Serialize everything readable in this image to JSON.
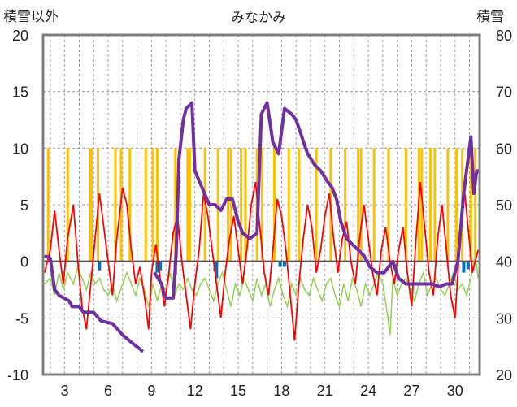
{
  "chart_data": {
    "type": "line",
    "title": "みなかみ",
    "ylabel_left": "積雪以外",
    "ylabel_right": "積雪",
    "ylim_left": [
      -10,
      20
    ],
    "ylim_right": [
      20,
      80
    ],
    "y_ticks_left": [
      -10,
      -5,
      0,
      5,
      10,
      15,
      20
    ],
    "y_ticks_right": [
      20,
      30,
      40,
      50,
      60,
      70,
      80
    ],
    "xlim": [
      1.5,
      31.7
    ],
    "x_ticks": [
      3,
      6,
      9,
      12,
      15,
      18,
      21,
      24,
      27,
      30
    ],
    "grid": true,
    "colors": {
      "temperature": "#ff0000",
      "sunshine": "#ffc000",
      "precip": "#0070c0",
      "snow_depth": "#7030a0",
      "change": "#92d050",
      "frame": "#808080"
    },
    "series": {
      "temperature": [
        [
          1.6,
          -1
        ],
        [
          2,
          1
        ],
        [
          2.3,
          4.5
        ],
        [
          2.6,
          1
        ],
        [
          2.9,
          -2
        ],
        [
          3.2,
          2
        ],
        [
          3.6,
          5
        ],
        [
          3.9,
          0
        ],
        [
          4.2,
          -4
        ],
        [
          4.5,
          -6
        ],
        [
          4.8,
          -2
        ],
        [
          5.1,
          2
        ],
        [
          5.4,
          6
        ],
        [
          5.7,
          3
        ],
        [
          6,
          0
        ],
        [
          6.3,
          -3
        ],
        [
          6.6,
          2
        ],
        [
          7,
          6.5
        ],
        [
          7.3,
          5
        ],
        [
          7.6,
          1
        ],
        [
          7.9,
          -2
        ],
        [
          8.2,
          -0.5
        ],
        [
          8.5,
          -3
        ],
        [
          8.8,
          -6
        ],
        [
          9,
          -1
        ],
        [
          9.3,
          1.5
        ],
        [
          9.6,
          -1.5
        ],
        [
          9.9,
          -4
        ],
        [
          10.2,
          -1
        ],
        [
          10.5,
          2.5
        ],
        [
          10.8,
          4
        ],
        [
          11.1,
          0
        ],
        [
          11.4,
          -3
        ],
        [
          11.7,
          -6
        ],
        [
          12,
          -2
        ],
        [
          12.3,
          1
        ],
        [
          12.6,
          6
        ],
        [
          12.9,
          4
        ],
        [
          13.2,
          1
        ],
        [
          13.5,
          -2
        ],
        [
          13.8,
          -5
        ],
        [
          14.1,
          -1
        ],
        [
          14.4,
          2
        ],
        [
          14.7,
          4
        ],
        [
          15,
          1
        ],
        [
          15.3,
          -2
        ],
        [
          15.6,
          1
        ],
        [
          15.9,
          5
        ],
        [
          16.2,
          7
        ],
        [
          16.5,
          3
        ],
        [
          16.8,
          -1
        ],
        [
          17.1,
          -3
        ],
        [
          17.4,
          1
        ],
        [
          17.7,
          5.5
        ],
        [
          18,
          4
        ],
        [
          18.3,
          1
        ],
        [
          18.6,
          -3
        ],
        [
          18.9,
          -7
        ],
        [
          19.2,
          -2
        ],
        [
          19.5,
          2
        ],
        [
          19.8,
          5
        ],
        [
          20.1,
          3
        ],
        [
          20.4,
          -1
        ],
        [
          20.7,
          1
        ],
        [
          21,
          4
        ],
        [
          21.3,
          6
        ],
        [
          21.6,
          2
        ],
        [
          21.9,
          -1
        ],
        [
          22.2,
          2
        ],
        [
          22.5,
          3.5
        ],
        [
          22.8,
          0
        ],
        [
          23.1,
          -2
        ],
        [
          23.4,
          2
        ],
        [
          23.7,
          5
        ],
        [
          24,
          2
        ],
        [
          24.3,
          -1
        ],
        [
          24.6,
          -3
        ],
        [
          24.9,
          1
        ],
        [
          25.2,
          3
        ],
        [
          25.5,
          0
        ],
        [
          25.8,
          -2
        ],
        [
          26.1,
          1
        ],
        [
          26.4,
          3
        ],
        [
          26.7,
          -1
        ],
        [
          27,
          -4
        ],
        [
          27.3,
          2
        ],
        [
          27.6,
          7
        ],
        [
          27.9,
          3
        ],
        [
          28.2,
          -1
        ],
        [
          28.5,
          -3
        ],
        [
          28.8,
          2
        ],
        [
          29.1,
          5
        ],
        [
          29.4,
          1
        ],
        [
          29.7,
          -3
        ],
        [
          30,
          -5
        ],
        [
          30.3,
          1
        ],
        [
          30.6,
          7
        ],
        [
          30.9,
          3
        ],
        [
          31.2,
          -1
        ],
        [
          31.6,
          1
        ]
      ],
      "sunshine": [
        [
          1.85,
          10
        ],
        [
          3.2,
          10
        ],
        [
          4.75,
          10
        ],
        [
          4.85,
          10
        ],
        [
          5.3,
          10
        ],
        [
          6.5,
          10
        ],
        [
          6.9,
          10
        ],
        [
          7.5,
          10
        ],
        [
          8.6,
          10
        ],
        [
          9.1,
          10
        ],
        [
          9.4,
          10
        ],
        [
          10.65,
          10
        ],
        [
          11.5,
          10
        ],
        [
          11.65,
          10
        ],
        [
          12.7,
          10
        ],
        [
          13.6,
          10
        ],
        [
          14.3,
          10
        ],
        [
          14.5,
          10
        ],
        [
          15.2,
          10
        ],
        [
          15.5,
          10
        ],
        [
          16.3,
          10
        ],
        [
          16.65,
          10
        ],
        [
          17.5,
          10
        ],
        [
          18.5,
          10
        ],
        [
          19.2,
          10
        ],
        [
          20.4,
          10
        ],
        [
          21.4,
          10
        ],
        [
          22.4,
          10
        ],
        [
          23.3,
          10
        ],
        [
          23.5,
          10
        ],
        [
          24.4,
          10
        ],
        [
          25.4,
          10
        ],
        [
          26.6,
          10
        ],
        [
          27.5,
          10
        ],
        [
          27.7,
          10
        ],
        [
          28.3,
          10
        ],
        [
          28.6,
          10
        ],
        [
          29.5,
          10
        ],
        [
          30.1,
          10
        ],
        [
          30.5,
          10
        ],
        [
          31.1,
          10
        ],
        [
          31.4,
          10
        ]
      ],
      "precip": [
        [
          5.4,
          -0.8
        ],
        [
          9.4,
          -1
        ],
        [
          9.6,
          -0.8
        ],
        [
          10.65,
          -1.2
        ],
        [
          13.4,
          -0.9
        ],
        [
          13.5,
          -1.5
        ],
        [
          17.9,
          -0.5
        ],
        [
          18.2,
          -0.5
        ],
        [
          30.6,
          -1
        ],
        [
          30.9,
          -0.7
        ]
      ],
      "snow_depth_a": [
        [
          1.6,
          41
        ],
        [
          2,
          40.5
        ],
        [
          2.3,
          35
        ],
        [
          2.6,
          34
        ],
        [
          3.3,
          33
        ],
        [
          3.5,
          32
        ],
        [
          4,
          32
        ],
        [
          4.3,
          31
        ],
        [
          5,
          31
        ],
        [
          5.5,
          29.5
        ],
        [
          6.3,
          29
        ],
        [
          7,
          27
        ],
        [
          7.7,
          25.5
        ],
        [
          8.2,
          24.5
        ],
        [
          8.4,
          24
        ]
      ],
      "snow_depth_b": [
        [
          9.2,
          38
        ],
        [
          9.7,
          36
        ],
        [
          9.9,
          34
        ],
        [
          10,
          33.5
        ],
        [
          10.5,
          33.5
        ],
        [
          10.7,
          41
        ],
        [
          10.9,
          58
        ],
        [
          11.2,
          65
        ],
        [
          11.4,
          67
        ],
        [
          11.8,
          68
        ],
        [
          12,
          56
        ],
        [
          12.5,
          53
        ],
        [
          13,
          50
        ],
        [
          13.4,
          50
        ],
        [
          13.8,
          49
        ],
        [
          14.2,
          51
        ],
        [
          14.6,
          51
        ],
        [
          15,
          47
        ],
        [
          15.3,
          45
        ],
        [
          15.8,
          44
        ],
        [
          16.3,
          45
        ],
        [
          16.6,
          66
        ],
        [
          17,
          68
        ],
        [
          17.4,
          61
        ],
        [
          17.8,
          59
        ],
        [
          18.2,
          67
        ],
        [
          18.7,
          66
        ],
        [
          19,
          65
        ],
        [
          19.4,
          62
        ],
        [
          19.8,
          59
        ],
        [
          20.3,
          57
        ],
        [
          20.7,
          56
        ],
        [
          21.2,
          54
        ],
        [
          21.5,
          53
        ],
        [
          21.8,
          51
        ],
        [
          22.1,
          47
        ],
        [
          22.5,
          44
        ],
        [
          22.9,
          43
        ],
        [
          23.3,
          42
        ],
        [
          23.7,
          41
        ],
        [
          24.1,
          39
        ],
        [
          24.6,
          38
        ],
        [
          25.1,
          38
        ],
        [
          25.7,
          40
        ],
        [
          26.1,
          37
        ],
        [
          26.6,
          36
        ],
        [
          27.2,
          36
        ],
        [
          27.8,
          36
        ],
        [
          28.4,
          36
        ],
        [
          28.9,
          35.5
        ],
        [
          29.4,
          36
        ],
        [
          29.8,
          36
        ],
        [
          30.2,
          40
        ],
        [
          30.6,
          52
        ],
        [
          31.1,
          62
        ],
        [
          31.3,
          52
        ],
        [
          31.5,
          56
        ],
        [
          31.7,
          56
        ]
      ],
      "change": [
        [
          1.6,
          -2
        ],
        [
          2,
          -1.5
        ],
        [
          2.3,
          -3
        ],
        [
          2.6,
          -1
        ],
        [
          2.9,
          -2.5
        ],
        [
          3.2,
          -1
        ],
        [
          3.6,
          -2
        ],
        [
          3.9,
          -0.5
        ],
        [
          4.2,
          -1.5
        ],
        [
          4.5,
          -2.5
        ],
        [
          4.8,
          -1
        ],
        [
          5.1,
          -2
        ],
        [
          5.4,
          -1.5
        ],
        [
          5.7,
          -2.5
        ],
        [
          6,
          -3
        ],
        [
          6.3,
          -2
        ],
        [
          6.6,
          -3.5
        ],
        [
          7,
          -2
        ],
        [
          7.3,
          -1
        ],
        [
          7.6,
          -2
        ],
        [
          7.9,
          -3
        ],
        [
          8.2,
          -1.5
        ],
        [
          8.5,
          -2.5
        ],
        [
          8.8,
          -4
        ],
        [
          9.1,
          -2
        ],
        [
          9.4,
          -3.5
        ],
        [
          9.7,
          -2
        ],
        [
          10,
          -2.5
        ],
        [
          10.3,
          -1
        ],
        [
          10.6,
          -3
        ],
        [
          10.9,
          -2
        ],
        [
          11.2,
          -2.5
        ],
        [
          11.5,
          -1.5
        ],
        [
          11.8,
          -2.5
        ],
        [
          12.1,
          -3
        ],
        [
          12.4,
          -2
        ],
        [
          12.7,
          -1.5
        ],
        [
          13,
          -2.5
        ],
        [
          13.3,
          -3.5
        ],
        [
          13.6,
          -2
        ],
        [
          13.9,
          -1
        ],
        [
          14.2,
          -2.5
        ],
        [
          14.5,
          -4
        ],
        [
          14.8,
          -2
        ],
        [
          15.1,
          -3
        ],
        [
          15.4,
          -1.5
        ],
        [
          15.7,
          -2.5
        ],
        [
          16,
          -3.5
        ],
        [
          16.3,
          -1.5
        ],
        [
          16.6,
          -3
        ],
        [
          16.9,
          -2
        ],
        [
          17.2,
          -4
        ],
        [
          17.5,
          -2.5
        ],
        [
          17.8,
          -1.5
        ],
        [
          18.1,
          -3
        ],
        [
          18.4,
          -4
        ],
        [
          18.7,
          -2
        ],
        [
          19,
          -3
        ],
        [
          19.3,
          -1.5
        ],
        [
          19.6,
          -2.5
        ],
        [
          19.9,
          -3
        ],
        [
          20.2,
          -1.5
        ],
        [
          20.5,
          -2.5
        ],
        [
          20.8,
          -3.5
        ],
        [
          21.1,
          -2
        ],
        [
          21.4,
          -1.5
        ],
        [
          21.7,
          -3
        ],
        [
          22,
          -4
        ],
        [
          22.3,
          -2
        ],
        [
          22.6,
          -3.5
        ],
        [
          22.9,
          -1.5
        ],
        [
          23.2,
          -2.5
        ],
        [
          23.5,
          -4
        ],
        [
          23.8,
          -2
        ],
        [
          24.1,
          -3
        ],
        [
          24.4,
          -2
        ],
        [
          24.7,
          -1
        ],
        [
          25,
          -2
        ],
        [
          25.3,
          -4.5
        ],
        [
          25.5,
          -6.5
        ],
        [
          25.7,
          -1.5
        ],
        [
          26,
          -3
        ],
        [
          26.3,
          -2
        ],
        [
          26.6,
          -1.5
        ],
        [
          26.9,
          -2.5
        ],
        [
          27.2,
          -3.5
        ],
        [
          27.5,
          -2
        ],
        [
          27.8,
          -1
        ],
        [
          28.1,
          -3
        ],
        [
          28.4,
          -2
        ],
        [
          28.7,
          -1.5
        ],
        [
          29,
          -2.5
        ],
        [
          29.3,
          -3
        ],
        [
          29.6,
          -2
        ],
        [
          29.9,
          -1
        ],
        [
          30.2,
          -2.5
        ],
        [
          30.5,
          -2
        ],
        [
          30.8,
          -3
        ],
        [
          31.1,
          -1.5
        ],
        [
          31.4,
          0.5
        ],
        [
          31.6,
          -1.5
        ]
      ]
    }
  }
}
